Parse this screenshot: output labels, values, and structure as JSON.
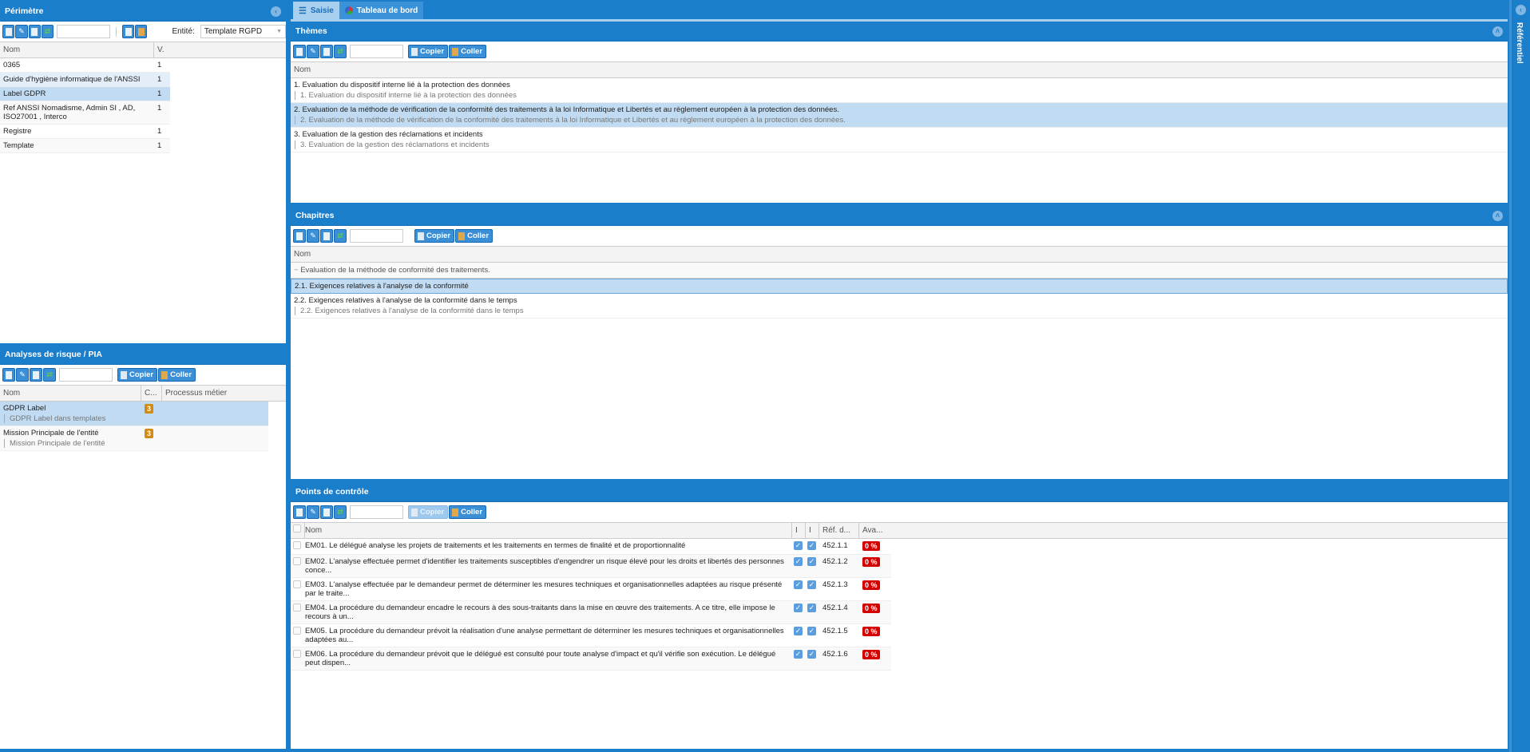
{
  "perimetre": {
    "title": "Périmètre",
    "entity_label": "Entité:",
    "entity_value": "Template RGPD",
    "columns": [
      "Nom",
      "V."
    ],
    "rows": [
      {
        "nom": "0365",
        "v": "1"
      },
      {
        "nom": "Guide d'hygiène informatique de l'ANSSI",
        "v": "1"
      },
      {
        "nom": "Label GDPR",
        "v": "1"
      },
      {
        "nom": "Ref ANSSI Nomadisme, Admin SI , AD, ISO27001 , Interco",
        "v": "1"
      },
      {
        "nom": "Registre",
        "v": "1"
      },
      {
        "nom": "Template",
        "v": "1"
      }
    ]
  },
  "analyses": {
    "title": "Analyses de risque / PIA",
    "copy": "Copier",
    "paste": "Coller",
    "columns": [
      "Nom",
      "C...",
      "Processus métier"
    ],
    "rows": [
      {
        "nom": "GDPR Label",
        "sub": "GDPR Label dans templates",
        "c": "3"
      },
      {
        "nom": "Mission Principale de l'entité",
        "sub": "Mission Principale de l'entité",
        "c": "3"
      }
    ]
  },
  "tabs": [
    {
      "label": "Saisie"
    },
    {
      "label": "Tableau de bord"
    }
  ],
  "themes": {
    "title": "Thèmes",
    "copy": "Copier",
    "paste": "Coller",
    "column": "Nom",
    "rows": [
      {
        "nom": "1. Evaluation du dispositif interne lié à la protection des données",
        "sub": "1. Evaluation du dispositif interne lié à la protection des données"
      },
      {
        "nom": "2. Evaluation de la méthode de vérification de la conformité des traitements à la loi Informatique et Libertés et au règlement européen à la protection des données.",
        "sub": "2. Evaluation de la méthode de vérification de la conformité des traitements à la loi Informatique et Libertés et au règlement européen à la protection des données."
      },
      {
        "nom": "3. Evaluation de la gestion des réclamations et incidents",
        "sub": "3. Evaluation de la gestion des réclamations et incidents"
      }
    ]
  },
  "chapitres": {
    "title": "Chapitres",
    "copy": "Copier",
    "paste": "Coller",
    "column": "Nom",
    "group": "Evaluation de la méthode de conformité des traitements.",
    "rows": [
      {
        "nom": "2.1. Exigences relatives à l'analyse de la conformité",
        "sub": ""
      },
      {
        "nom": "2.2. Exigences relatives à l'analyse de la conformité dans le temps",
        "sub": "2.2. Exigences relatives à l'analyse de la conformité dans le temps"
      }
    ]
  },
  "points": {
    "title": "Points de contrôle",
    "copy": "Copier",
    "paste": "Coller",
    "columns": [
      "Nom",
      "I",
      "I",
      "Réf. d...",
      "Ava..."
    ],
    "rows": [
      {
        "nom": "EM01. Le délégué analyse les projets de traitements et les traitements en termes de finalité et de proportionnalité",
        "ref": "452.1.1",
        "ava": "0 %"
      },
      {
        "nom": "EM02. L'analyse effectuée permet d'identifier les traitements susceptibles d'engendrer un risque élevé pour les droits et libertés des personnes conce...",
        "ref": "452.1.2",
        "ava": "0 %"
      },
      {
        "nom": "EM03. L'analyse effectuée par le demandeur permet de déterminer les mesures techniques et organisationnelles adaptées au risque présenté par le traite...",
        "ref": "452.1.3",
        "ava": "0 %"
      },
      {
        "nom": "EM04. La procédure du demandeur encadre le recours à des sous-traitants dans la mise en œuvre des traitements. A ce titre, elle impose le recours à un...",
        "ref": "452.1.4",
        "ava": "0 %"
      },
      {
        "nom": "EM05. La procédure du demandeur prévoit la réalisation d'une analyse permettant de déterminer les mesures techniques et organisationnelles adaptées au...",
        "ref": "452.1.5",
        "ava": "0 %"
      },
      {
        "nom": "EM06. La procédure du demandeur prévoit que le délégué est consulté pour toute analyse d'impact et qu'il vérifie son exécution. Le délégué peut dispen...",
        "ref": "452.1.6",
        "ava": "0 %"
      }
    ]
  },
  "referentiel": {
    "title": "Référentiel"
  },
  "colors": {
    "header": "#1a7ecb",
    "selected": "#c1dcf2",
    "badge": "#d48a0e",
    "zero": "#d40000"
  }
}
